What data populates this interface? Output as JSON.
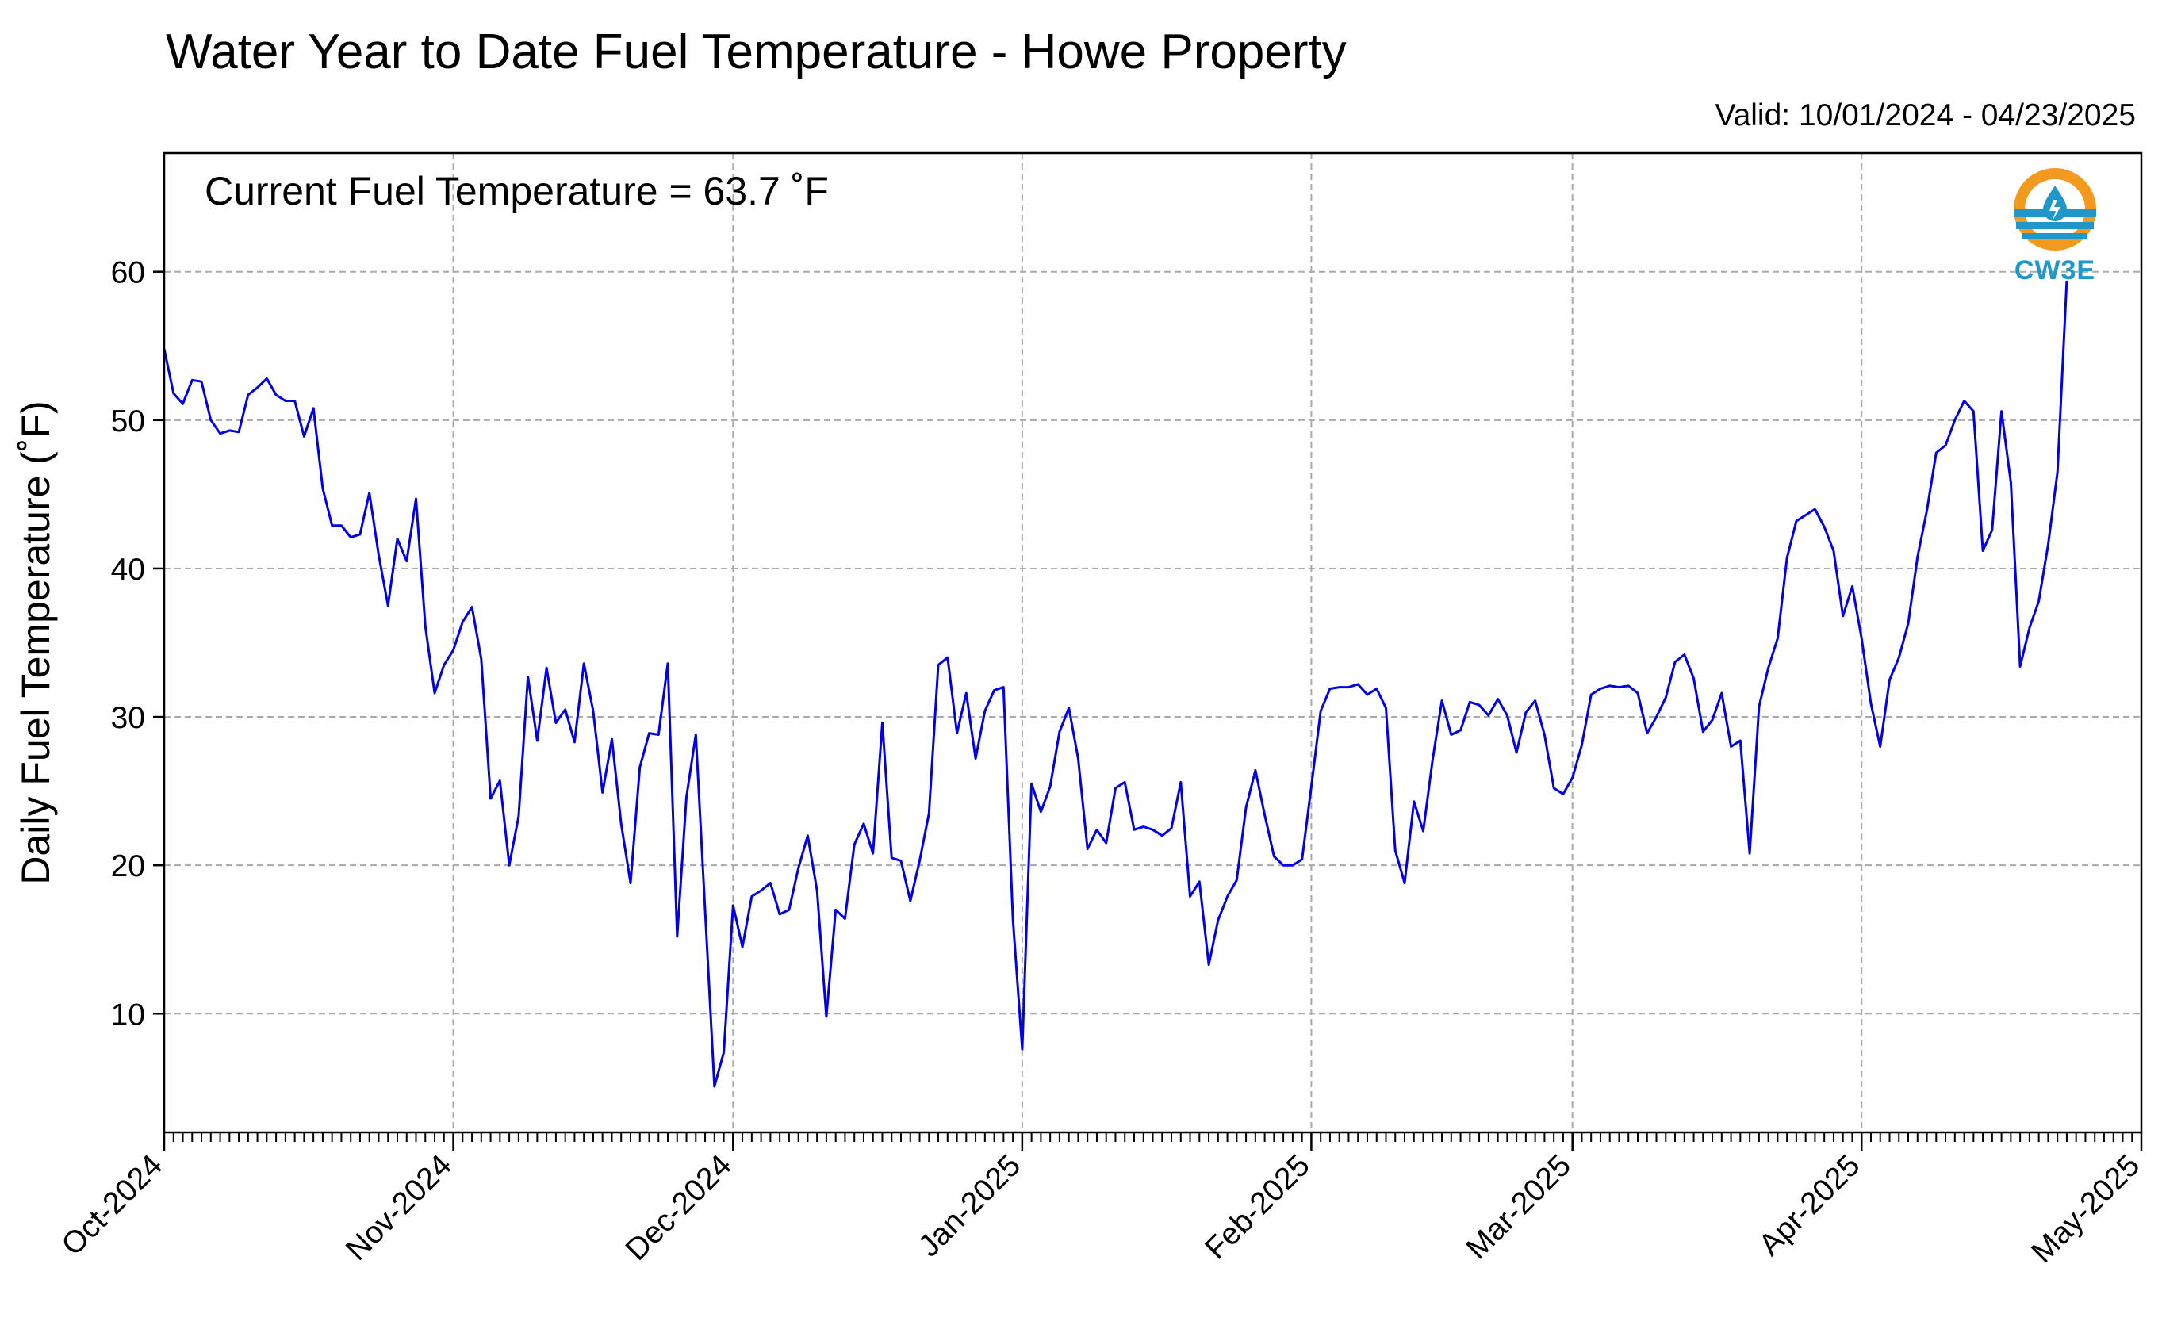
{
  "title": "Water Year to Date Fuel Temperature - Howe Property",
  "valid_text": "Valid: 10/01/2024 - 04/23/2025",
  "current_text": "Current Fuel Temperature = 63.7 ˚F",
  "logo": {
    "text": "CW3E",
    "icon": "cw3e-logo-icon",
    "colors": {
      "orange": "#f39a1e",
      "blue": "#2196c9"
    }
  },
  "chart_data": {
    "type": "line",
    "title": "Water Year to Date Fuel Temperature - Howe Property",
    "xlabel": "",
    "ylabel": "Daily Fuel Temperature (˚F)",
    "ylim": [
      2,
      68
    ],
    "xlim": [
      "2024-10-01",
      "2025-05-01"
    ],
    "yticks": [
      10,
      20,
      30,
      40,
      50,
      60
    ],
    "xticks": [
      {
        "date": "2024-10-01",
        "label": "Oct-2024"
      },
      {
        "date": "2024-11-01",
        "label": "Nov-2024"
      },
      {
        "date": "2024-12-01",
        "label": "Dec-2024"
      },
      {
        "date": "2025-01-01",
        "label": "Jan-2025"
      },
      {
        "date": "2025-02-01",
        "label": "Feb-2025"
      },
      {
        "date": "2025-03-01",
        "label": "Mar-2025"
      },
      {
        "date": "2025-04-01",
        "label": "Apr-2025"
      },
      {
        "date": "2025-05-01",
        "label": "May-2025"
      }
    ],
    "grid": true,
    "line_color": "#0000ee",
    "series": [
      {
        "x_start": "2024-10-01",
        "x_step_days": 1,
        "values": [
          54.8,
          51.8,
          51.1,
          52.7,
          52.6,
          50.0,
          49.1,
          49.3,
          49.2,
          51.7,
          52.2,
          52.8,
          51.7,
          51.3,
          51.3,
          48.9,
          50.8,
          45.4,
          42.9,
          42.9,
          42.1,
          42.3,
          45.1,
          40.9,
          37.5,
          42.0,
          40.5,
          44.7,
          36.1,
          31.6,
          33.5,
          34.5,
          36.4,
          37.4,
          33.9,
          24.5,
          25.7,
          20.0,
          23.3,
          32.7,
          28.4,
          33.3,
          29.6,
          30.5,
          28.3,
          33.6,
          30.4,
          24.9,
          28.5,
          22.8,
          18.8,
          26.6,
          28.9,
          28.8,
          33.6,
          15.2,
          24.6,
          28.8,
          17.0,
          5.1,
          7.4,
          17.3,
          14.5,
          17.9,
          18.3,
          18.8,
          16.7,
          17.0,
          19.8,
          22.0,
          18.3,
          9.8,
          17.0,
          16.4,
          21.4,
          22.8,
          20.8,
          29.6,
          20.5,
          20.3,
          17.6,
          20.3,
          23.5,
          33.5,
          34.0,
          28.9,
          31.6,
          27.2,
          30.4,
          31.8,
          32.0,
          16.4,
          7.6,
          25.5,
          23.6,
          25.3,
          29.0,
          30.6,
          27.2,
          21.1,
          22.4,
          21.5,
          25.2,
          25.6,
          22.4,
          22.6,
          22.4,
          22.0,
          22.5,
          25.6,
          17.9,
          18.9,
          13.3,
          16.3,
          17.9,
          19.0,
          23.9,
          26.4,
          23.4,
          20.6,
          20.0,
          20.0,
          20.4,
          25.3,
          30.4,
          31.9,
          32.0,
          32.0,
          32.2,
          31.5,
          31.9,
          30.6,
          21.0,
          18.8,
          24.3,
          22.3,
          27.1,
          31.1,
          28.8,
          29.1,
          31.0,
          30.8,
          30.1,
          31.2,
          30.1,
          27.6,
          30.3,
          31.1,
          28.8,
          25.2,
          24.8,
          25.9,
          28.1,
          31.5,
          31.9,
          32.1,
          32.0,
          32.1,
          31.6,
          28.9,
          30.0,
          31.3,
          33.7,
          34.2,
          32.6,
          29.0,
          29.8,
          31.6,
          28.0,
          28.4,
          20.8,
          30.7,
          33.3,
          35.3,
          40.7,
          43.2,
          43.6,
          44.0,
          42.8,
          41.2,
          36.8,
          38.8,
          35.3,
          30.9,
          28.0,
          32.5,
          34.0,
          36.3,
          40.8,
          43.9,
          47.8,
          48.3,
          50.0,
          51.3,
          50.6,
          41.2,
          42.6,
          50.6,
          45.8,
          33.4,
          36.0,
          37.8,
          41.6,
          46.5,
          59.4
        ]
      }
    ]
  }
}
